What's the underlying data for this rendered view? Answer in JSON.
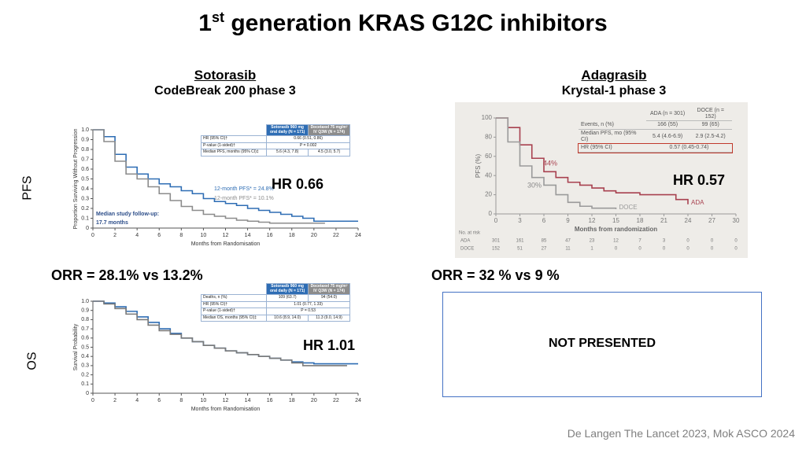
{
  "slide": {
    "title": {
      "number": "1",
      "superscript": "st",
      "text": "generation KRAS G12C inhibitors"
    },
    "rows": [
      "PFS",
      "OS"
    ],
    "left": {
      "drug": "Sotorasib",
      "trial": "CodeBreak 200 phase 3",
      "orr": "ORR = 28.1% vs 13.2%",
      "pfs_hr": "HR 0.66",
      "os_hr": "HR 1.01"
    },
    "right": {
      "drug": "Adagrasib",
      "trial": "Krystal-1 phase 3",
      "orr": "ORR = 32 % vs 9 %",
      "pfs_hr": "HR 0.57",
      "os_note": "NOT PRESENTED"
    },
    "citation": "De Langen The Lancet 2023, Mok ASCO 2024"
  },
  "chart_data": [
    {
      "type": "line",
      "step": true,
      "xlabel": "Months from Randomisation",
      "ylabel": "Proportion Surviving Without Progression",
      "xlim": [
        0,
        24
      ],
      "xticks": [
        0,
        2,
        4,
        6,
        8,
        10,
        12,
        14,
        16,
        18,
        20,
        22,
        24
      ],
      "ylim": [
        0,
        1
      ],
      "yticks": [
        0,
        0.1,
        0.2,
        0.3,
        0.4,
        0.5,
        0.6,
        0.7,
        0.8,
        0.9,
        {
          "value": 1,
          "label": "1.0"
        }
      ],
      "x": [
        0,
        1,
        2,
        3,
        4,
        5,
        6,
        7,
        8,
        9,
        10,
        11,
        12,
        13,
        14,
        15,
        16,
        17,
        18,
        19,
        20,
        21,
        22,
        23,
        24
      ],
      "series": [
        {
          "color": "#2e6db4",
          "values": [
            1,
            0.93,
            0.75,
            0.62,
            0.55,
            0.5,
            0.45,
            0.42,
            0.38,
            0.35,
            0.3,
            0.27,
            0.25,
            0.23,
            0.2,
            0.18,
            0.16,
            0.14,
            0.12,
            0.1,
            0.07,
            0.07,
            0.07,
            0.07,
            0.07
          ]
        },
        {
          "color": "#8c8c8c",
          "values": [
            1,
            0.88,
            0.68,
            0.55,
            0.5,
            0.42,
            0.35,
            0.28,
            0.22,
            0.18,
            0.14,
            0.12,
            0.1,
            0.08,
            0.07,
            0.06,
            0.05,
            0.05,
            0.05,
            0.05,
            0.05,
            0.05,
            null,
            null,
            null
          ]
        }
      ],
      "annotations": [
        {
          "text": "12-month PFS* = 24.8%",
          "color": "#2e6db4"
        },
        {
          "text": "12-month PFS* = 10.1%",
          "color": "#8c8c8c"
        },
        {
          "text": "Median study follow-up:",
          "color": "#2e4f8a"
        },
        {
          "text": "17.7 months",
          "color": "#2e4f8a"
        }
      ],
      "table": {
        "columns": [
          {
            "label": "Sotorasib 960 mg oral daily (N = 171)",
            "color": "#2e6db4"
          },
          {
            "label": "Docetaxel 75 mg/m² IV Q3W (N = 174)",
            "color": "#8c8c8c"
          }
        ],
        "rows": [
          {
            "label": "HR (95% CI)†",
            "cells": [
              "0.66 (0.51, 0.86)"
            ]
          },
          {
            "label": "P-value (1-sided)†",
            "cells": [
              "P = 0.002"
            ]
          },
          {
            "label": "Median PFS, months (95% CI)‡",
            "cells": [
              "5.6 (4.3, 7.8)",
              "4.5 (3.0, 5.7)"
            ]
          }
        ]
      }
    },
    {
      "type": "line",
      "step": true,
      "xlabel": "Months from Randomisation",
      "ylabel": "Survival Probability",
      "xlim": [
        0,
        24
      ],
      "xticks": [
        0,
        2,
        4,
        6,
        8,
        10,
        12,
        14,
        16,
        18,
        20,
        22,
        24
      ],
      "ylim": [
        0,
        1
      ],
      "yticks": [
        0,
        0.1,
        0.2,
        0.3,
        0.4,
        0.5,
        0.6,
        0.7,
        0.8,
        0.9,
        {
          "value": 1,
          "label": "1.0"
        }
      ],
      "x": [
        0,
        1,
        2,
        3,
        4,
        5,
        6,
        7,
        8,
        9,
        10,
        11,
        12,
        13,
        14,
        15,
        16,
        17,
        18,
        19,
        20,
        21,
        22,
        23,
        24
      ],
      "series": [
        {
          "color": "#2e6db4",
          "values": [
            1,
            0.98,
            0.94,
            0.89,
            0.83,
            0.77,
            0.7,
            0.65,
            0.6,
            0.56,
            0.52,
            0.49,
            0.46,
            0.44,
            0.42,
            0.4,
            0.38,
            0.36,
            0.34,
            0.33,
            0.32,
            0.32,
            0.32,
            0.32,
            0.32
          ]
        },
        {
          "color": "#7a7a7a",
          "values": [
            1,
            0.97,
            0.92,
            0.86,
            0.8,
            0.74,
            0.68,
            0.64,
            0.6,
            0.56,
            0.52,
            0.49,
            0.46,
            0.44,
            0.42,
            0.4,
            0.38,
            0.36,
            0.33,
            0.3,
            0.3,
            0.3,
            0.3,
            0.3,
            null
          ]
        }
      ],
      "table": {
        "columns": [
          {
            "label": "Sotorasib 960 mg oral daily (N = 171)",
            "color": "#2e6db4"
          },
          {
            "label": "Docetaxel 75 mg/m² IV Q3W (N = 174)",
            "color": "#8c8c8c"
          }
        ],
        "rows": [
          {
            "label": "Deaths, n (%)",
            "cells": [
              "109 (63.7)",
              "94 (54.0)"
            ]
          },
          {
            "label": "HR (95% CI)†",
            "cells": [
              "1.01 (0.77, 1.33)"
            ]
          },
          {
            "label": "P-value (1-sided)†",
            "cells": [
              "P = 0.53"
            ]
          },
          {
            "label": "Median OS, months (95% CI)‡",
            "cells": [
              "10.6 (8.9, 14.0)",
              "11.3 (9.0, 14.9)"
            ]
          }
        ]
      }
    },
    {
      "type": "line",
      "step": true,
      "xlabel": "Months from randomization",
      "ylabel": "PFS (%)",
      "xlim": [
        0,
        30
      ],
      "xticks": [
        0,
        3,
        6,
        9,
        12,
        15,
        18,
        21,
        24,
        27,
        30
      ],
      "ylim": [
        0,
        100
      ],
      "yticks": [
        0,
        20,
        40,
        60,
        80,
        100
      ],
      "x": [
        0,
        1.5,
        3,
        4.5,
        6,
        7.5,
        9,
        10.5,
        12,
        13.5,
        15,
        16.5,
        18,
        19.5,
        21,
        22.5,
        24
      ],
      "series": [
        {
          "name": "ADA",
          "color": "#a8414f",
          "values": [
            100,
            90,
            72,
            58,
            44,
            38,
            33,
            30,
            27,
            24,
            22,
            22,
            20,
            20,
            20,
            15,
            10
          ]
        },
        {
          "name": "DOCE",
          "color": "#9a9a9a",
          "values": [
            100,
            75,
            50,
            38,
            30,
            20,
            12,
            8,
            6,
            6,
            5,
            null,
            null,
            null,
            null,
            null,
            null
          ]
        }
      ],
      "annotations": [
        {
          "text": "44%",
          "color": "#a8414f"
        },
        {
          "text": "30%",
          "color": "#8a8a8a"
        }
      ],
      "table": {
        "columns": [
          {
            "label": "ADA (n = 301)"
          },
          {
            "label": "DOCE (n = 152)"
          }
        ],
        "rows": [
          {
            "label": "Events, n (%)",
            "cells": [
              "166 (55)",
              "99 (65)"
            ]
          },
          {
            "label": "Median PFS, mo (95% CI)",
            "cells": [
              "5.4 (4.6-6.9)",
              "2.9 (2.5-4.2)"
            ]
          },
          {
            "label": "HR (95% CI)",
            "cells": [
              "0.57 (0.45-0.74)"
            ]
          }
        ],
        "highlight_row": 2,
        "highlight_color": "#c0392b"
      },
      "risk_table": {
        "title": "No. at risk",
        "rows": [
          {
            "name": "ADA",
            "values": [
              301,
              161,
              85,
              47,
              23,
              12,
              7,
              3,
              0,
              0,
              0
            ]
          },
          {
            "name": "DOCE",
            "values": [
              152,
              51,
              27,
              11,
              1,
              0,
              0,
              0,
              0,
              0,
              0
            ]
          }
        ]
      }
    }
  ]
}
